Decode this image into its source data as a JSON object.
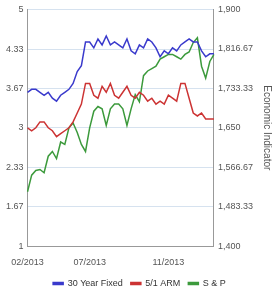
{
  "chart_data": {
    "type": "line",
    "categories": [
      "02/2013",
      null,
      null,
      null,
      null,
      null,
      null,
      null,
      null,
      null,
      null,
      null,
      null,
      null,
      null,
      "07/2013",
      null,
      null,
      null,
      null,
      null,
      null,
      null,
      null,
      null,
      null,
      null,
      null,
      null,
      null,
      null,
      null,
      null,
      null,
      "11/2013",
      null,
      null,
      null,
      null,
      null,
      null,
      null,
      null,
      null,
      null,
      null
    ],
    "series": [
      {
        "name": "30 Year Fixed",
        "color": "#3a3acc",
        "axis": "y",
        "values": [
          3.6,
          3.65,
          3.65,
          3.6,
          3.55,
          3.6,
          3.5,
          3.45,
          3.55,
          3.6,
          3.65,
          3.75,
          3.95,
          4.05,
          4.45,
          4.45,
          4.35,
          4.5,
          4.4,
          4.55,
          4.4,
          4.45,
          4.4,
          4.35,
          4.5,
          4.3,
          4.25,
          4.4,
          4.35,
          4.5,
          4.45,
          4.35,
          4.2,
          4.3,
          4.25,
          4.35,
          4.3,
          4.4,
          4.45,
          4.5,
          4.45,
          4.45,
          4.3,
          4.2,
          4.25,
          4.25
        ]
      },
      {
        "name": "5/1 ARM",
        "color": "#cc3333",
        "axis": "y",
        "values": [
          3.0,
          2.95,
          3.0,
          3.1,
          3.1,
          3.0,
          2.95,
          2.85,
          2.9,
          2.95,
          3.0,
          3.1,
          3.25,
          3.4,
          3.75,
          3.75,
          3.55,
          3.5,
          3.7,
          3.6,
          3.75,
          3.55,
          3.5,
          3.6,
          3.7,
          3.55,
          3.5,
          3.6,
          3.55,
          3.45,
          3.5,
          3.4,
          3.45,
          3.4,
          3.55,
          3.5,
          3.45,
          3.75,
          3.75,
          3.5,
          3.25,
          3.2,
          3.25,
          3.15,
          3.15,
          3.15
        ]
      },
      {
        "name": "S & P",
        "color": "#3c9a3c",
        "axis": "y2",
        "values": [
          1515,
          1550,
          1560,
          1562,
          1555,
          1590,
          1600,
          1585,
          1620,
          1615,
          1650,
          1660,
          1640,
          1615,
          1600,
          1650,
          1685,
          1695,
          1690,
          1655,
          1690,
          1700,
          1700,
          1690,
          1655,
          1690,
          1720,
          1705,
          1760,
          1770,
          1775,
          1780,
          1795,
          1800,
          1805,
          1805,
          1800,
          1795,
          1805,
          1810,
          1830,
          1840,
          1780,
          1755,
          1790,
          1805
        ]
      }
    ],
    "ylim": [
      1,
      5
    ],
    "yticks": [
      1,
      1.67,
      2.33,
      3,
      3.67,
      4.33,
      5
    ],
    "y2label": "Economic Indicator",
    "y2lim": [
      1400,
      1900
    ],
    "y2ticks": [
      {
        "value": 1400,
        "label": "1,400"
      },
      {
        "value": 1483.33,
        "label": "1,483.33"
      },
      {
        "value": 1566.67,
        "label": "1,566.67"
      },
      {
        "value": 1650,
        "label": "1,650"
      },
      {
        "value": 1733.33,
        "label": "1,733.33"
      },
      {
        "value": 1816.67,
        "label": "1,816.67"
      },
      {
        "value": 1900,
        "label": "1,900"
      }
    ],
    "grid": true,
    "legend": "bottom"
  }
}
